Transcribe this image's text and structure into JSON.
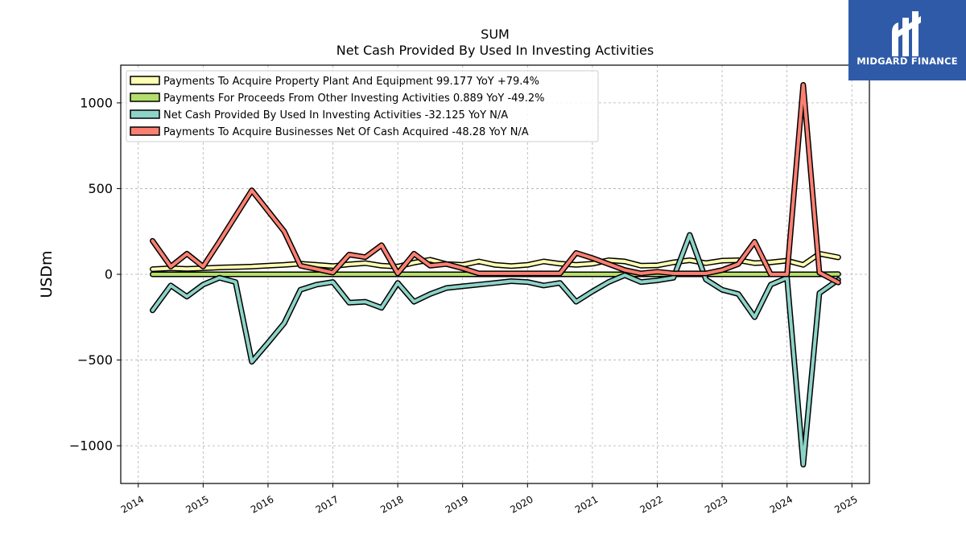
{
  "chart_data": {
    "type": "line",
    "title": "SUM",
    "subtitle": "Net Cash Provided By Used In Investing Activities",
    "ylabel": "USDm",
    "xlim": [
      2013.73,
      2025.27
    ],
    "ylim": [
      -1220,
      1220
    ],
    "yticks": [
      1000,
      500,
      0,
      -500,
      -1000
    ],
    "ytick_labels": [
      "1000",
      "500",
      "0",
      "−500",
      "−1000"
    ],
    "xticks": [
      2014,
      2015,
      2016,
      2017,
      2018,
      2019,
      2020,
      2021,
      2022,
      2023,
      2024,
      2025
    ],
    "xtick_labels": [
      "2014",
      "2015",
      "2016",
      "2017",
      "2018",
      "2019",
      "2020",
      "2021",
      "2022",
      "2023",
      "2024",
      "2025"
    ],
    "grid": true,
    "legend_position": "top-left",
    "x": [
      2014.22,
      2014.5,
      2014.75,
      2015.0,
      2015.25,
      2015.5,
      2015.75,
      2016.0,
      2016.25,
      2016.5,
      2016.75,
      2017.0,
      2017.25,
      2017.5,
      2017.75,
      2018.0,
      2018.25,
      2018.5,
      2018.75,
      2019.0,
      2019.25,
      2019.5,
      2019.75,
      2020.0,
      2020.25,
      2020.5,
      2020.75,
      2021.0,
      2021.25,
      2021.5,
      2021.75,
      2022.0,
      2022.25,
      2022.5,
      2022.75,
      2023.0,
      2023.25,
      2023.5,
      2023.75,
      2024.0,
      2024.25,
      2024.5,
      2024.79
    ],
    "series": [
      {
        "name": "Payments To Acquire Property Plant And Equipment  99.177 YoY +79.4%",
        "color": "#ffffb3",
        "values": [
          30,
          35,
          32,
          35,
          40,
          42,
          45,
          50,
          55,
          62,
          55,
          48,
          58,
          65,
          50,
          45,
          68,
          85,
          60,
          55,
          75,
          55,
          48,
          55,
          75,
          62,
          55,
          62,
          82,
          75,
          50,
          52,
          70,
          82,
          65,
          80,
          82,
          65,
          70,
          80,
          55,
          120,
          99
        ]
      },
      {
        "name": "Payments For Proceeds From Other Investing Activities  0.889 YoY -49.2%",
        "color": "#b3de69",
        "values": [
          0,
          0,
          0,
          0,
          0,
          0,
          0,
          0,
          0,
          0,
          0,
          0,
          0,
          0,
          0,
          0,
          0,
          0,
          0,
          0,
          0,
          0,
          0,
          0,
          0,
          0,
          0,
          0,
          0,
          0,
          0,
          0,
          0,
          0,
          0,
          0,
          0,
          0,
          0,
          0,
          0,
          0,
          0.9
        ]
      },
      {
        "name": "Net Cash Provided By Used In Investing Activities  -32.125 YoY N/A",
        "color": "#8dd3c7",
        "values": [
          -210,
          -65,
          -130,
          -60,
          -20,
          -45,
          -510,
          -400,
          -285,
          -90,
          -60,
          -45,
          -165,
          -160,
          -195,
          -50,
          -160,
          -115,
          -80,
          -70,
          -60,
          -50,
          -40,
          -45,
          -65,
          -50,
          -160,
          -100,
          -45,
          -5,
          -45,
          -35,
          -20,
          230,
          -30,
          -90,
          -115,
          -250,
          -60,
          -20,
          -1110,
          -110,
          -32
        ]
      },
      {
        "name": "Payments To Acquire Businesses Net Of Cash Acquired  -48.28 YoY N/A",
        "color": "#fb8072",
        "values": [
          195,
          45,
          120,
          45,
          190,
          340,
          490,
          370,
          250,
          50,
          30,
          10,
          115,
          100,
          170,
          5,
          120,
          50,
          60,
          35,
          5,
          5,
          5,
          5,
          5,
          5,
          125,
          95,
          60,
          25,
          5,
          15,
          5,
          5,
          5,
          25,
          60,
          190,
          0,
          0,
          1105,
          10,
          -48
        ]
      }
    ]
  },
  "branding": {
    "name": "MIDGARD FINANCE",
    "bg": "#2f5aa8"
  }
}
